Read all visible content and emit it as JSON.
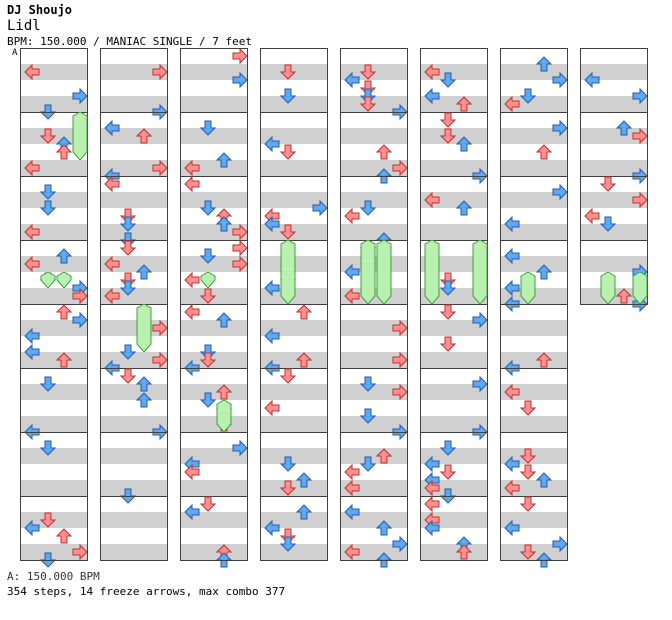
{
  "header": {
    "artist": "DJ Shoujo",
    "title": "Lidl",
    "bpm_line": "BPM: 150.000 / MANIAC SINGLE / 7 feet",
    "section_marker": "A"
  },
  "colors": {
    "red_arrow": "#ff9090",
    "blue_arrow": "#60a8f0",
    "pink_arrow": "#ffb0ff",
    "freeze": "#b8f0b0",
    "stripe": "#d0d0d0",
    "border": "#404040"
  },
  "chart": {
    "columns": 8,
    "measures_per_column": 8,
    "lanes": [
      "left",
      "down",
      "up",
      "right"
    ],
    "total_measures": 59
  },
  "footer": {
    "bpm": "A: 150.000 BPM",
    "stats": "354 steps, 14 freeze arrows, max combo 377"
  }
}
